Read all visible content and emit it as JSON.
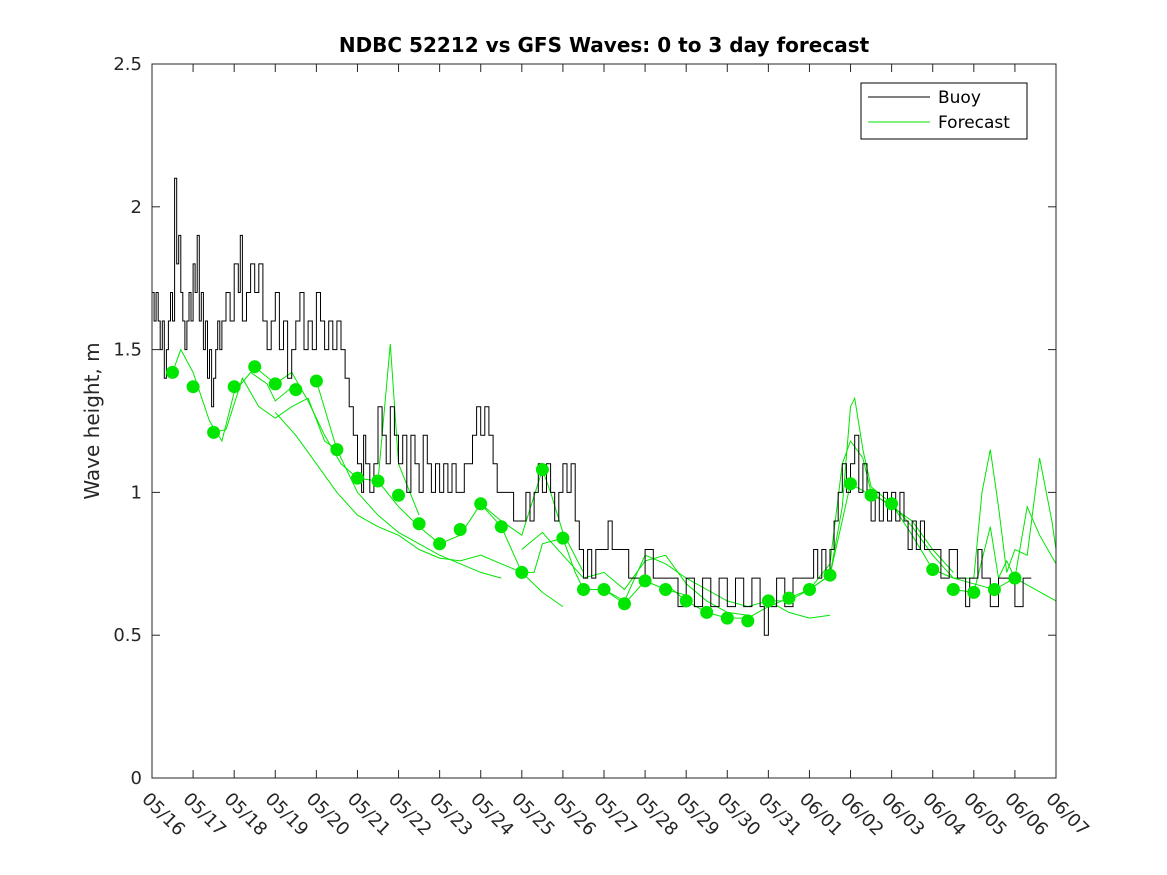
{
  "chart_data": {
    "type": "line",
    "title": "NDBC 52212 vs GFS Waves: 0 to 3 day forecast",
    "ylabel": "Wave height, m",
    "xlabel": "",
    "xlim": [
      "05/16",
      "06/07"
    ],
    "ylim": [
      0,
      2.5
    ],
    "yticks": [
      0,
      0.5,
      1,
      1.5,
      2,
      2.5
    ],
    "ytick_labels": [
      "0",
      "0.5",
      "1",
      "1.5",
      "2",
      "2.5"
    ],
    "xtick_labels": [
      "05/16",
      "05/17",
      "05/18",
      "05/19",
      "05/20",
      "05/21",
      "05/22",
      "05/23",
      "05/24",
      "05/25",
      "05/26",
      "05/27",
      "05/28",
      "05/29",
      "05/30",
      "05/31",
      "06/01",
      "06/02",
      "06/03",
      "06/04",
      "06/05",
      "06/06",
      "06/07"
    ],
    "grid": false,
    "legend": {
      "position": "top-right",
      "entries": [
        "Buoy",
        "Forecast"
      ]
    },
    "colors": {
      "buoy": "#000000",
      "forecast": "#00e600"
    },
    "buoy": [
      [
        0.0,
        1.7
      ],
      [
        0.05,
        1.6
      ],
      [
        0.1,
        1.7
      ],
      [
        0.15,
        1.6
      ],
      [
        0.2,
        1.5
      ],
      [
        0.25,
        1.6
      ],
      [
        0.3,
        1.4
      ],
      [
        0.35,
        1.5
      ],
      [
        0.4,
        1.6
      ],
      [
        0.45,
        1.7
      ],
      [
        0.5,
        1.6
      ],
      [
        0.55,
        2.1
      ],
      [
        0.6,
        1.8
      ],
      [
        0.65,
        1.9
      ],
      [
        0.7,
        1.7
      ],
      [
        0.75,
        1.6
      ],
      [
        0.8,
        1.5
      ],
      [
        0.85,
        1.6
      ],
      [
        0.9,
        1.7
      ],
      [
        0.95,
        1.6
      ],
      [
        1.0,
        1.8
      ],
      [
        1.05,
        1.7
      ],
      [
        1.1,
        1.9
      ],
      [
        1.15,
        1.6
      ],
      [
        1.2,
        1.7
      ],
      [
        1.25,
        1.5
      ],
      [
        1.3,
        1.6
      ],
      [
        1.35,
        1.4
      ],
      [
        1.4,
        1.5
      ],
      [
        1.45,
        1.3
      ],
      [
        1.5,
        1.4
      ],
      [
        1.55,
        1.5
      ],
      [
        1.6,
        1.6
      ],
      [
        1.65,
        1.5
      ],
      [
        1.7,
        1.6
      ],
      [
        1.8,
        1.7
      ],
      [
        1.9,
        1.6
      ],
      [
        2.0,
        1.8
      ],
      [
        2.1,
        1.7
      ],
      [
        2.15,
        1.9
      ],
      [
        2.2,
        1.6
      ],
      [
        2.3,
        1.7
      ],
      [
        2.4,
        1.8
      ],
      [
        2.5,
        1.7
      ],
      [
        2.6,
        1.8
      ],
      [
        2.7,
        1.6
      ],
      [
        2.8,
        1.5
      ],
      [
        2.9,
        1.6
      ],
      [
        3.0,
        1.7
      ],
      [
        3.1,
        1.5
      ],
      [
        3.2,
        1.6
      ],
      [
        3.3,
        1.4
      ],
      [
        3.4,
        1.5
      ],
      [
        3.5,
        1.6
      ],
      [
        3.6,
        1.7
      ],
      [
        3.7,
        1.5
      ],
      [
        3.8,
        1.6
      ],
      [
        3.9,
        1.5
      ],
      [
        4.0,
        1.7
      ],
      [
        4.1,
        1.6
      ],
      [
        4.2,
        1.5
      ],
      [
        4.3,
        1.6
      ],
      [
        4.4,
        1.5
      ],
      [
        4.5,
        1.6
      ],
      [
        4.6,
        1.5
      ],
      [
        4.7,
        1.4
      ],
      [
        4.8,
        1.3
      ],
      [
        4.9,
        1.2
      ],
      [
        5.0,
        1.1
      ],
      [
        5.1,
        1.0
      ],
      [
        5.15,
        1.2
      ],
      [
        5.2,
        1.1
      ],
      [
        5.3,
        1.0
      ],
      [
        5.4,
        1.1
      ],
      [
        5.5,
        1.3
      ],
      [
        5.6,
        1.2
      ],
      [
        5.7,
        1.1
      ],
      [
        5.8,
        1.3
      ],
      [
        5.9,
        1.2
      ],
      [
        6.0,
        1.1
      ],
      [
        6.1,
        1.2
      ],
      [
        6.2,
        1.0
      ],
      [
        6.3,
        1.2
      ],
      [
        6.4,
        1.1
      ],
      [
        6.5,
        1.0
      ],
      [
        6.6,
        1.2
      ],
      [
        6.7,
        1.1
      ],
      [
        6.8,
        1.0
      ],
      [
        6.9,
        1.1
      ],
      [
        7.0,
        1.0
      ],
      [
        7.1,
        1.1
      ],
      [
        7.2,
        1.0
      ],
      [
        7.3,
        1.1
      ],
      [
        7.4,
        1.0
      ],
      [
        7.6,
        1.1
      ],
      [
        7.8,
        1.2
      ],
      [
        7.9,
        1.3
      ],
      [
        8.0,
        1.2
      ],
      [
        8.1,
        1.3
      ],
      [
        8.2,
        1.2
      ],
      [
        8.3,
        1.1
      ],
      [
        8.4,
        1.0
      ],
      [
        8.6,
        1.0
      ],
      [
        8.8,
        0.9
      ],
      [
        9.0,
        0.9
      ],
      [
        9.1,
        1.0
      ],
      [
        9.2,
        0.9
      ],
      [
        9.3,
        1.0
      ],
      [
        9.4,
        1.1
      ],
      [
        9.5,
        1.0
      ],
      [
        9.6,
        1.1
      ],
      [
        9.7,
        1.0
      ],
      [
        9.8,
        0.9
      ],
      [
        9.9,
        1.0
      ],
      [
        10.0,
        1.1
      ],
      [
        10.1,
        1.0
      ],
      [
        10.2,
        1.1
      ],
      [
        10.3,
        0.9
      ],
      [
        10.4,
        0.8
      ],
      [
        10.5,
        0.7
      ],
      [
        10.6,
        0.8
      ],
      [
        10.7,
        0.7
      ],
      [
        10.8,
        0.8
      ],
      [
        11.0,
        0.8
      ],
      [
        11.1,
        0.9
      ],
      [
        11.2,
        0.8
      ],
      [
        11.4,
        0.8
      ],
      [
        11.6,
        0.7
      ],
      [
        11.8,
        0.7
      ],
      [
        12.0,
        0.8
      ],
      [
        12.2,
        0.7
      ],
      [
        12.4,
        0.7
      ],
      [
        12.6,
        0.7
      ],
      [
        12.8,
        0.6
      ],
      [
        13.0,
        0.7
      ],
      [
        13.2,
        0.6
      ],
      [
        13.4,
        0.7
      ],
      [
        13.6,
        0.6
      ],
      [
        13.8,
        0.7
      ],
      [
        14.0,
        0.6
      ],
      [
        14.2,
        0.7
      ],
      [
        14.4,
        0.6
      ],
      [
        14.6,
        0.7
      ],
      [
        14.8,
        0.6
      ],
      [
        14.9,
        0.5
      ],
      [
        15.0,
        0.6
      ],
      [
        15.2,
        0.7
      ],
      [
        15.4,
        0.6
      ],
      [
        15.6,
        0.7
      ],
      [
        15.8,
        0.7
      ],
      [
        16.0,
        0.7
      ],
      [
        16.1,
        0.8
      ],
      [
        16.2,
        0.7
      ],
      [
        16.3,
        0.8
      ],
      [
        16.4,
        0.7
      ],
      [
        16.5,
        0.8
      ],
      [
        16.6,
        0.9
      ],
      [
        16.7,
        1.0
      ],
      [
        16.8,
        1.1
      ],
      [
        16.9,
        1.0
      ],
      [
        17.0,
        1.1
      ],
      [
        17.1,
        1.2
      ],
      [
        17.2,
        1.0
      ],
      [
        17.3,
        1.1
      ],
      [
        17.4,
        1.0
      ],
      [
        17.5,
        0.9
      ],
      [
        17.6,
        1.0
      ],
      [
        17.7,
        0.9
      ],
      [
        17.8,
        1.0
      ],
      [
        17.9,
        0.9
      ],
      [
        18.0,
        1.0
      ],
      [
        18.1,
        0.9
      ],
      [
        18.2,
        1.0
      ],
      [
        18.3,
        0.9
      ],
      [
        18.4,
        0.8
      ],
      [
        18.5,
        0.9
      ],
      [
        18.6,
        0.8
      ],
      [
        18.7,
        0.9
      ],
      [
        18.8,
        0.8
      ],
      [
        19.0,
        0.8
      ],
      [
        19.2,
        0.7
      ],
      [
        19.4,
        0.8
      ],
      [
        19.6,
        0.7
      ],
      [
        19.8,
        0.6
      ],
      [
        19.9,
        0.7
      ],
      [
        20.0,
        0.7
      ],
      [
        20.1,
        0.8
      ],
      [
        20.2,
        0.7
      ],
      [
        20.4,
        0.6
      ],
      [
        20.6,
        0.7
      ],
      [
        20.8,
        0.7
      ],
      [
        21.0,
        0.6
      ],
      [
        21.2,
        0.7
      ],
      [
        21.4,
        0.7
      ]
    ],
    "forecast_dots": [
      [
        0.5,
        1.42
      ],
      [
        1.0,
        1.37
      ],
      [
        1.5,
        1.21
      ],
      [
        2.0,
        1.37
      ],
      [
        2.5,
        1.44
      ],
      [
        3.0,
        1.38
      ],
      [
        3.5,
        1.36
      ],
      [
        4.0,
        1.39
      ],
      [
        4.5,
        1.15
      ],
      [
        5.0,
        1.05
      ],
      [
        5.5,
        1.04
      ],
      [
        6.0,
        0.99
      ],
      [
        6.5,
        0.89
      ],
      [
        7.0,
        0.82
      ],
      [
        7.5,
        0.87
      ],
      [
        8.0,
        0.96
      ],
      [
        8.5,
        0.88
      ],
      [
        9.0,
        0.72
      ],
      [
        9.5,
        1.08
      ],
      [
        10.0,
        0.84
      ],
      [
        10.5,
        0.66
      ],
      [
        11.0,
        0.66
      ],
      [
        11.5,
        0.61
      ],
      [
        12.0,
        0.69
      ],
      [
        12.5,
        0.66
      ],
      [
        13.0,
        0.62
      ],
      [
        13.5,
        0.58
      ],
      [
        14.0,
        0.56
      ],
      [
        14.5,
        0.55
      ],
      [
        15.0,
        0.62
      ],
      [
        15.5,
        0.63
      ],
      [
        16.0,
        0.66
      ],
      [
        16.5,
        0.71
      ],
      [
        17.0,
        1.03
      ],
      [
        17.5,
        0.99
      ],
      [
        18.0,
        0.96
      ],
      [
        19.0,
        0.73
      ],
      [
        19.5,
        0.66
      ],
      [
        20.0,
        0.65
      ],
      [
        20.5,
        0.66
      ],
      [
        21.0,
        0.7
      ]
    ],
    "forecast_series": [
      [
        [
          0.5,
          1.42
        ],
        [
          0.7,
          1.5
        ],
        [
          1.0,
          1.42
        ],
        [
          1.4,
          1.25
        ],
        [
          1.7,
          1.18
        ],
        [
          2.0,
          1.35
        ],
        [
          2.4,
          1.42
        ],
        [
          2.8,
          1.38
        ],
        [
          3.0,
          1.32
        ],
        [
          3.5,
          1.38
        ],
        [
          3.5,
          1.36
        ]
      ],
      [
        [
          1.5,
          1.21
        ],
        [
          1.8,
          1.22
        ],
        [
          2.2,
          1.4
        ],
        [
          2.6,
          1.3
        ],
        [
          3.0,
          1.26
        ],
        [
          3.4,
          1.3
        ],
        [
          3.8,
          1.33
        ],
        [
          4.2,
          1.18
        ],
        [
          4.5,
          1.15
        ]
      ],
      [
        [
          2.5,
          1.44
        ],
        [
          3.0,
          1.38
        ],
        [
          3.4,
          1.42
        ],
        [
          3.8,
          1.32
        ],
        [
          4.2,
          1.2
        ],
        [
          4.6,
          1.1
        ],
        [
          5.0,
          1.05
        ],
        [
          5.5,
          1.04
        ],
        [
          5.8,
          1.52
        ],
        [
          6.0,
          1.1
        ],
        [
          6.5,
          0.92
        ]
      ],
      [
        [
          4.0,
          1.39
        ],
        [
          4.5,
          1.15
        ],
        [
          5.0,
          1.0
        ],
        [
          5.5,
          0.92
        ],
        [
          6.0,
          0.86
        ],
        [
          6.5,
          0.82
        ],
        [
          7.0,
          0.78
        ],
        [
          7.5,
          0.75
        ],
        [
          8.0,
          0.72
        ],
        [
          8.5,
          0.7
        ]
      ],
      [
        [
          3.0,
          1.28
        ],
        [
          3.5,
          1.2
        ],
        [
          4.0,
          1.1
        ],
        [
          4.5,
          1.0
        ],
        [
          5.0,
          0.92
        ],
        [
          5.5,
          0.88
        ],
        [
          6.0,
          0.85
        ],
        [
          6.5,
          0.8
        ],
        [
          7.0,
          0.77
        ],
        [
          7.5,
          0.76
        ],
        [
          8.0,
          0.78
        ],
        [
          8.5,
          0.75
        ],
        [
          9.0,
          0.72
        ],
        [
          9.5,
          0.65
        ],
        [
          10.0,
          0.6
        ]
      ],
      [
        [
          5.5,
          1.04
        ],
        [
          6.0,
          0.95
        ],
        [
          6.5,
          0.88
        ],
        [
          7.0,
          0.82
        ],
        [
          7.5,
          0.85
        ],
        [
          8.0,
          0.96
        ],
        [
          8.5,
          0.9
        ],
        [
          9.0,
          0.85
        ],
        [
          9.5,
          1.08
        ],
        [
          9.7,
          1.0
        ],
        [
          10.0,
          0.86
        ],
        [
          10.5,
          0.72
        ]
      ],
      [
        [
          8.0,
          0.96
        ],
        [
          8.5,
          0.88
        ],
        [
          9.0,
          0.72
        ],
        [
          9.3,
          0.72
        ],
        [
          9.5,
          0.82
        ],
        [
          10.0,
          0.84
        ],
        [
          10.3,
          0.72
        ],
        [
          10.5,
          0.66
        ],
        [
          11.0,
          0.66
        ],
        [
          11.5,
          0.61
        ],
        [
          12.0,
          0.69
        ],
        [
          12.5,
          0.66
        ],
        [
          13.0,
          0.64
        ]
      ],
      [
        [
          9.0,
          0.8
        ],
        [
          9.5,
          0.86
        ],
        [
          10.0,
          0.78
        ],
        [
          10.5,
          0.7
        ],
        [
          11.0,
          0.72
        ],
        [
          11.5,
          0.66
        ],
        [
          12.0,
          0.76
        ],
        [
          12.5,
          0.78
        ],
        [
          13.0,
          0.68
        ],
        [
          13.5,
          0.62
        ],
        [
          14.0,
          0.58
        ],
        [
          14.5,
          0.57
        ]
      ],
      [
        [
          11.0,
          0.66
        ],
        [
          11.5,
          0.62
        ],
        [
          12.0,
          0.78
        ],
        [
          12.5,
          0.75
        ],
        [
          13.0,
          0.7
        ],
        [
          13.5,
          0.66
        ],
        [
          14.0,
          0.62
        ],
        [
          14.5,
          0.6
        ],
        [
          15.0,
          0.62
        ],
        [
          15.5,
          0.58
        ],
        [
          16.0,
          0.56
        ],
        [
          16.5,
          0.57
        ]
      ],
      [
        [
          12.5,
          0.68
        ],
        [
          13.0,
          0.62
        ],
        [
          13.5,
          0.58
        ],
        [
          14.0,
          0.56
        ],
        [
          14.5,
          0.56
        ],
        [
          15.0,
          0.6
        ],
        [
          15.5,
          0.63
        ],
        [
          16.0,
          0.66
        ],
        [
          16.5,
          0.71
        ],
        [
          16.8,
          0.95
        ],
        [
          17.0,
          1.3
        ],
        [
          17.1,
          1.33
        ],
        [
          17.3,
          1.15
        ],
        [
          17.5,
          1.02
        ],
        [
          18.0,
          0.96
        ]
      ],
      [
        [
          15.0,
          0.62
        ],
        [
          15.5,
          0.62
        ],
        [
          16.0,
          0.66
        ],
        [
          16.5,
          0.75
        ],
        [
          16.8,
          1.1
        ],
        [
          17.0,
          1.18
        ],
        [
          17.3,
          1.12
        ],
        [
          17.5,
          1.0
        ],
        [
          18.0,
          0.95
        ],
        [
          18.5,
          0.9
        ],
        [
          19.0,
          0.8
        ],
        [
          19.5,
          0.72
        ]
      ],
      [
        [
          16.0,
          0.66
        ],
        [
          16.5,
          0.71
        ],
        [
          17.0,
          1.03
        ],
        [
          17.5,
          0.99
        ],
        [
          18.0,
          0.96
        ],
        [
          18.5,
          0.88
        ],
        [
          19.0,
          0.78
        ],
        [
          19.5,
          0.7
        ],
        [
          20.0,
          0.68
        ],
        [
          20.5,
          0.66
        ],
        [
          21.0,
          0.7
        ],
        [
          21.5,
          0.66
        ],
        [
          22.0,
          0.62
        ]
      ],
      [
        [
          18.0,
          0.96
        ],
        [
          18.5,
          0.85
        ],
        [
          19.0,
          0.73
        ],
        [
          19.5,
          0.7
        ],
        [
          20.0,
          0.7
        ],
        [
          20.2,
          1.0
        ],
        [
          20.4,
          1.15
        ],
        [
          20.6,
          0.95
        ],
        [
          20.8,
          0.72
        ],
        [
          21.0,
          0.8
        ],
        [
          21.3,
          0.78
        ],
        [
          21.6,
          1.12
        ],
        [
          21.9,
          0.9
        ],
        [
          22.0,
          0.8
        ]
      ],
      [
        [
          19.5,
          0.66
        ],
        [
          20.0,
          0.65
        ],
        [
          20.4,
          0.88
        ],
        [
          20.6,
          0.7
        ],
        [
          20.8,
          0.76
        ],
        [
          21.0,
          0.7
        ],
        [
          21.3,
          0.95
        ],
        [
          21.6,
          0.85
        ],
        [
          22.0,
          0.75
        ]
      ]
    ]
  }
}
